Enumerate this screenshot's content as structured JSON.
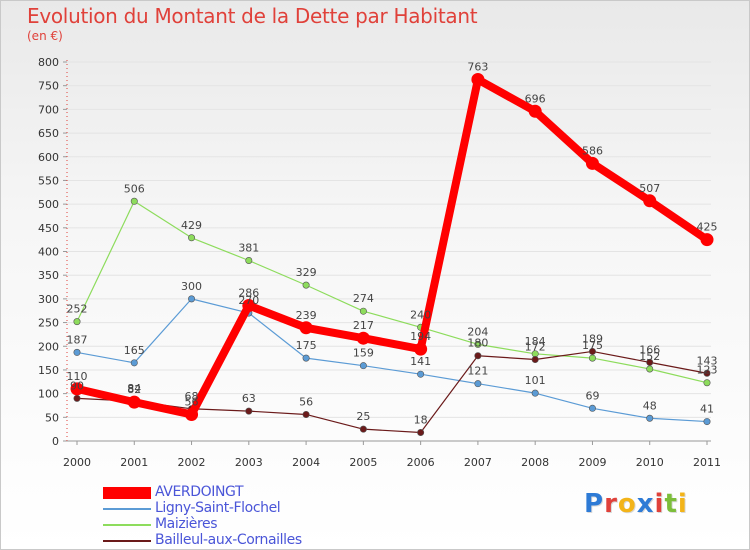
{
  "header": {
    "title": "Evolution du Montant de la Dette par Habitant",
    "unit": "(en €)"
  },
  "logo": {
    "text": "Proxiti",
    "colors": [
      "#2e7bd6",
      "#e0413a",
      "#f3b419",
      "#2e7bd6",
      "#e0413a",
      "#7cbe3a",
      "#f3b419"
    ]
  },
  "chart_data": {
    "type": "line",
    "title": "Evolution du Montant de la Dette par Habitant",
    "subtitle": "(en €)",
    "x": [
      2000,
      2001,
      2002,
      2003,
      2004,
      2005,
      2006,
      2007,
      2008,
      2009,
      2010,
      2011
    ],
    "x_tick_labels": [
      "2000",
      "2001",
      "2002",
      "2003",
      "2004",
      "2005",
      "2006",
      "2007",
      "2008",
      "2009",
      "2010",
      "2011"
    ],
    "y_ticks": [
      0,
      50,
      100,
      150,
      200,
      250,
      300,
      350,
      400,
      450,
      500,
      550,
      600,
      650,
      700,
      750,
      800
    ],
    "ylim": [
      0,
      800
    ],
    "grid": "horizontal",
    "legend_position": "bottom-left",
    "series": [
      {
        "name": "Ligny-Saint-Flochel",
        "color": "#5b9bd5",
        "values": [
          187,
          165,
          300,
          270,
          175,
          159,
          141,
          121,
          101,
          69,
          48,
          41
        ],
        "width": 1.2
      },
      {
        "name": "Maizières",
        "color": "#8ddc5c",
        "values": [
          252,
          506,
          429,
          381,
          329,
          274,
          240,
          204,
          184,
          175,
          152,
          123
        ],
        "width": 1.2
      },
      {
        "name": "Bailleul-aux-Cornailles",
        "color": "#6b1a1a",
        "values": [
          90,
          84,
          68,
          63,
          56,
          25,
          18,
          180,
          172,
          189,
          166,
          143
        ],
        "width": 1.2
      },
      {
        "name": "AVERDOINGT",
        "color": "#ff0000",
        "values": [
          110,
          82,
          56,
          286,
          239,
          217,
          194,
          763,
          696,
          586,
          507,
          425
        ],
        "width": 8
      }
    ],
    "data_labels": [
      {
        "series": "Ligny-Saint-Flochel",
        "labels": [
          "187",
          "165",
          "300",
          "270",
          "175",
          "159",
          "141",
          "121",
          "101",
          "69",
          "48",
          "41"
        ]
      },
      {
        "series": "Maizières",
        "labels": [
          "252",
          "506",
          "429",
          "381",
          "329",
          "274",
          "240",
          "204",
          "184",
          "175",
          "152",
          "123"
        ]
      },
      {
        "series": "Bailleul-aux-Cornailles",
        "labels": [
          "90",
          "84",
          "68",
          "63",
          "56",
          "25",
          "18",
          "180",
          "172",
          "189",
          "166",
          "143"
        ]
      },
      {
        "series": "AVERDOINGT",
        "labels": [
          "110",
          "82",
          "56",
          "286",
          "239",
          "217",
          "194",
          "763",
          "696",
          "586",
          "507",
          "425"
        ]
      }
    ]
  },
  "legend": {
    "items": [
      {
        "label": "AVERDOINGT",
        "color": "#ff0000",
        "thick": true
      },
      {
        "label": "Ligny-Saint-Flochel",
        "color": "#5b9bd5",
        "thick": false
      },
      {
        "label": "Maizières",
        "color": "#8ddc5c",
        "thick": false
      },
      {
        "label": "Bailleul-aux-Cornailles",
        "color": "#6b1a1a",
        "thick": false
      }
    ]
  }
}
